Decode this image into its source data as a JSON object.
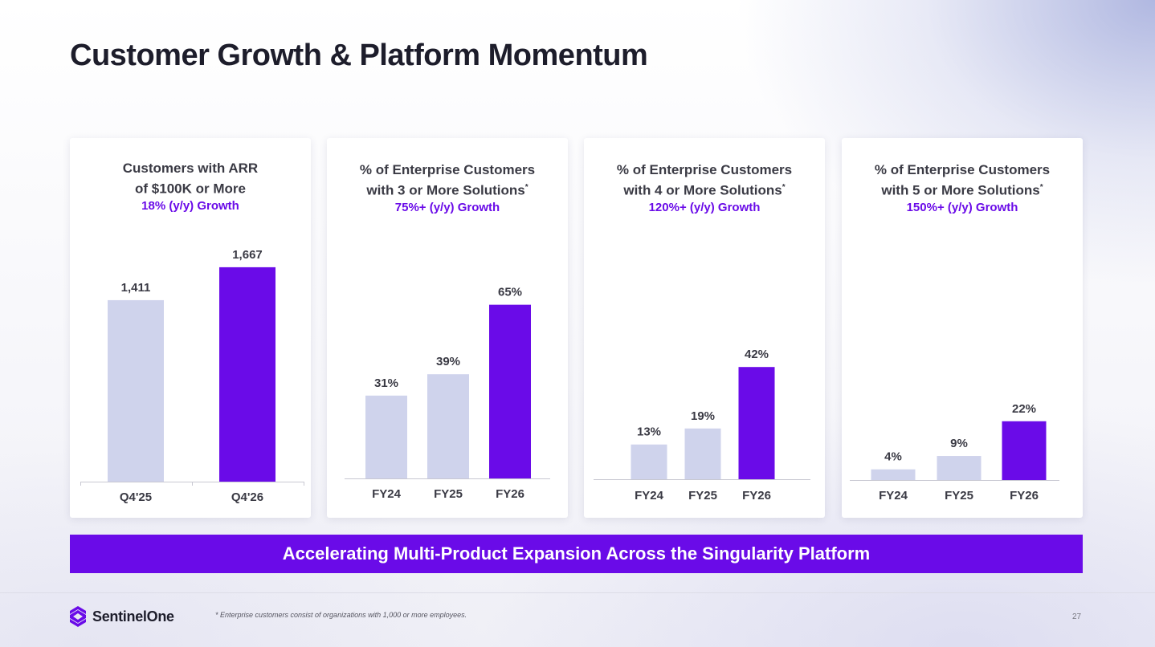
{
  "title": "Customer Growth & Platform Momentum",
  "colors": {
    "accent": "#6a0be8",
    "muted_bar": "#cfd3ec",
    "text": "#3a3a44"
  },
  "charts": [
    {
      "title_line1": "Customers with ARR",
      "title_line2": "of $100K or More",
      "title_sup": "",
      "growth": "18% (y/y) Growth"
    },
    {
      "title_line1": "% of Enterprise Customers",
      "title_line2": "with 3 or More Solutions",
      "title_sup": "*",
      "growth": "75%+ (y/y) Growth"
    },
    {
      "title_line1": "% of Enterprise Customers",
      "title_line2": "with 4 or More Solutions",
      "title_sup": "*",
      "growth": "120%+ (y/y) Growth"
    },
    {
      "title_line1": "% of Enterprise Customers",
      "title_line2": "with 5 or More Solutions",
      "title_sup": "*",
      "growth": "150%+ (y/y) Growth"
    }
  ],
  "chart_data": [
    {
      "type": "bar",
      "title": "Customers with ARR of $100K or More",
      "subtitle": "18% (y/y) Growth",
      "categories": [
        "Q4'25",
        "Q4'26"
      ],
      "values": [
        1411,
        1667
      ],
      "labels": [
        "1,411",
        "1,667"
      ],
      "highlight_index": 1,
      "ylim": [
        0,
        1760
      ],
      "xlabel": "",
      "ylabel": ""
    },
    {
      "type": "bar",
      "title": "% of Enterprise Customers with 3 or More Solutions*",
      "subtitle": "75%+ (y/y) Growth",
      "categories": [
        "FY24",
        "FY25",
        "FY26"
      ],
      "values": [
        31,
        39,
        65
      ],
      "labels": [
        "31%",
        "39%",
        "65%"
      ],
      "highlight_index": 2,
      "ylim": [
        0,
        70
      ],
      "xlabel": "",
      "ylabel": ""
    },
    {
      "type": "bar",
      "title": "% of Enterprise Customers with 4 or More Solutions*",
      "subtitle": "120%+ (y/y) Growth",
      "categories": [
        "FY24",
        "FY25",
        "FY26"
      ],
      "values": [
        13,
        19,
        42
      ],
      "labels": [
        "13%",
        "19%",
        "42%"
      ],
      "highlight_index": 2,
      "ylim": [
        0,
        70
      ],
      "xlabel": "",
      "ylabel": ""
    },
    {
      "type": "bar",
      "title": "% of Enterprise Customers with 5 or More Solutions*",
      "subtitle": "150%+ (y/y) Growth",
      "categories": [
        "FY24",
        "FY25",
        "FY26"
      ],
      "values": [
        4,
        9,
        22
      ],
      "labels": [
        "4%",
        "9%",
        "22%"
      ],
      "highlight_index": 2,
      "ylim": [
        0,
        70
      ],
      "xlabel": "",
      "ylabel": ""
    }
  ],
  "banner": "Accelerating Multi-Product Expansion Across the Singularity Platform",
  "footer": {
    "logo_text": "SentinelOne",
    "footnote": "* Enterprise customers consist of organizations with 1,000 or more employees.",
    "page_number": "27"
  }
}
